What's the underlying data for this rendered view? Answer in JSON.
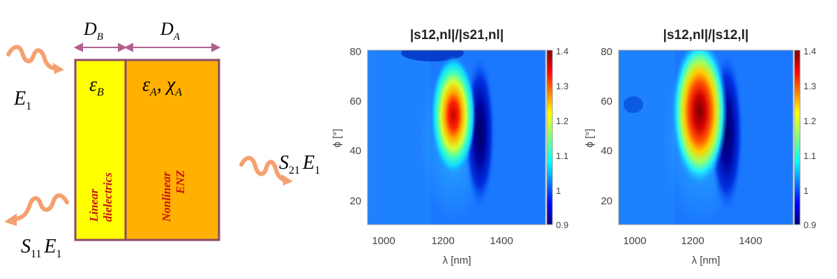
{
  "schematic": {
    "width_b": "D",
    "width_b_sub": "B",
    "width_a": "D",
    "width_a_sub": "A",
    "layer_b_symbol": "ε",
    "layer_b_symbol_sub": "B",
    "layer_a_symbol": "ε",
    "layer_a_symbol_sub": "A",
    "layer_a_chi": "χ",
    "layer_a_chi_sub": "A",
    "layer_b_label_line1": "Linear",
    "layer_b_label_line2": "dielectrics",
    "layer_a_label_line1": "Nonlinear",
    "layer_a_label_line2": "ENZ",
    "incident_label": "E",
    "incident_label_sub": "1",
    "reflected_label_s": "S",
    "reflected_label_s_sub": "11",
    "reflected_label_e": "E",
    "reflected_label_e_sub": "1",
    "transmitted_label_s": "S",
    "transmitted_label_s_sub": "21",
    "transmitted_label_e": "E",
    "transmitted_label_e_sub": "1",
    "colors": {
      "layer_b": "#ffff00",
      "layer_a": "#ffb000",
      "border": "#8b4a6a",
      "arrow": "#b06090",
      "wave": "#f5a070",
      "layer_text": "#cc1010"
    }
  },
  "chart_data": [
    {
      "type": "heatmap",
      "title": "|s12,nl|/|s21,nl|",
      "xlabel": "λ [nm]",
      "ylabel": "ϕ [°]",
      "xlim": [
        950,
        1550
      ],
      "ylim": [
        10,
        80
      ],
      "xticks": [
        "1000",
        "1200",
        "1400"
      ],
      "yticks": [
        "20",
        "40",
        "60",
        "80"
      ],
      "colorbar": {
        "min": 0.9,
        "max": 1.4,
        "ticks": [
          "0.9",
          "1",
          "1.1",
          "1.2",
          "1.3",
          "1.4"
        ]
      },
      "features": [
        {
          "kind": "peak",
          "x": 1235,
          "y": 55,
          "value": 1.38
        },
        {
          "kind": "trough",
          "x": 1320,
          "y": 52,
          "value": 0.9
        }
      ]
    },
    {
      "type": "heatmap",
      "title": "|s12,nl|/|s12,l|",
      "xlabel": "λ [nm]",
      "ylabel": "ϕ [°]",
      "xlim": [
        950,
        1550
      ],
      "ylim": [
        10,
        80
      ],
      "xticks": [
        "1000",
        "1200",
        "1400"
      ],
      "yticks": [
        "20",
        "40",
        "60",
        "80"
      ],
      "colorbar": {
        "min": 0.9,
        "max": 1.4,
        "ticks": [
          "0.9",
          "1",
          "1.1",
          "1.2",
          "1.3",
          "1.4"
        ]
      },
      "features": [
        {
          "kind": "peak",
          "x": 1215,
          "y": 57,
          "value": 1.42
        },
        {
          "kind": "trough",
          "x": 1305,
          "y": 52,
          "value": 0.9
        }
      ]
    }
  ]
}
